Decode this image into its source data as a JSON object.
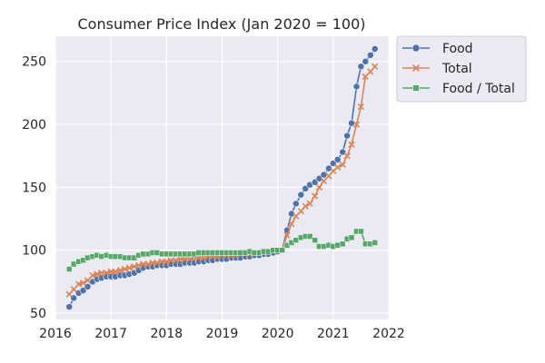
{
  "chart_data": {
    "type": "line",
    "title": "Consumer Price Index (Jan 2020 = 100)",
    "xlabel": "",
    "ylabel": "",
    "xlim": [
      2016.0,
      2022.0
    ],
    "ylim": [
      45,
      270
    ],
    "x_ticks": [
      2016,
      2017,
      2018,
      2019,
      2020,
      2021,
      2022
    ],
    "y_ticks": [
      50,
      100,
      150,
      200,
      250
    ],
    "grid": true,
    "legend_position": "outside-top-right",
    "background": "#eaeaf2",
    "x": [
      2016.25,
      2016.33,
      2016.42,
      2016.5,
      2016.58,
      2016.67,
      2016.75,
      2016.83,
      2016.92,
      2017.0,
      2017.08,
      2017.17,
      2017.25,
      2017.33,
      2017.42,
      2017.5,
      2017.58,
      2017.67,
      2017.75,
      2017.83,
      2017.92,
      2018.0,
      2018.08,
      2018.17,
      2018.25,
      2018.33,
      2018.42,
      2018.5,
      2018.58,
      2018.67,
      2018.75,
      2018.83,
      2018.92,
      2019.0,
      2019.08,
      2019.17,
      2019.25,
      2019.33,
      2019.42,
      2019.5,
      2019.58,
      2019.67,
      2019.75,
      2019.83,
      2019.92,
      2020.0,
      2020.08,
      2020.17,
      2020.25,
      2020.33,
      2020.42,
      2020.5,
      2020.58,
      2020.67,
      2020.75,
      2020.83,
      2020.92,
      2021.0,
      2021.08,
      2021.17,
      2021.25,
      2021.33,
      2021.42,
      2021.5,
      2021.58,
      2021.67,
      2021.75
    ],
    "series": [
      {
        "name": "Food",
        "color": "#4c72b0",
        "marker": "circle",
        "values": [
          55,
          62,
          66,
          68,
          71,
          75,
          77,
          78,
          79,
          79,
          79,
          80,
          80,
          81,
          82,
          84,
          86,
          87,
          87,
          88,
          88,
          88,
          89,
          89,
          89,
          90,
          90,
          90,
          91,
          91,
          92,
          92,
          93,
          93,
          93,
          94,
          94,
          94,
          95,
          95,
          96,
          96,
          97,
          97,
          98,
          99,
          100,
          116,
          129,
          137,
          144,
          149,
          152,
          154,
          157,
          160,
          165,
          169,
          172,
          178,
          191,
          201,
          230,
          246,
          250,
          255,
          260
        ]
      },
      {
        "name": "Total",
        "color": "#dd8452",
        "marker": "x",
        "values": [
          65,
          69,
          73,
          74,
          76,
          80,
          81,
          82,
          82,
          83,
          83,
          84,
          85,
          86,
          87,
          88,
          89,
          89,
          90,
          90,
          91,
          91,
          92,
          92,
          93,
          93,
          93,
          94,
          94,
          94,
          95,
          95,
          95,
          96,
          96,
          96,
          96,
          97,
          97,
          97,
          98,
          98,
          98,
          99,
          99,
          100,
          100,
          112,
          121,
          127,
          131,
          135,
          137,
          143,
          150,
          155,
          159,
          163,
          166,
          168,
          175,
          184,
          200,
          214,
          238,
          242,
          246
        ]
      },
      {
        "name": "Food / Total",
        "color": "#55a868",
        "marker": "square",
        "values": [
          85,
          89,
          91,
          92,
          94,
          95,
          96,
          95,
          96,
          95,
          95,
          95,
          94,
          94,
          94,
          96,
          97,
          97,
          98,
          98,
          97,
          97,
          97,
          97,
          97,
          97,
          97,
          97,
          98,
          98,
          98,
          98,
          98,
          98,
          98,
          98,
          98,
          98,
          98,
          99,
          98,
          98,
          99,
          99,
          100,
          100,
          100,
          104,
          106,
          108,
          110,
          111,
          111,
          108,
          103,
          103,
          104,
          103,
          104,
          105,
          109,
          110,
          115,
          115,
          105,
          105,
          106
        ]
      }
    ]
  }
}
